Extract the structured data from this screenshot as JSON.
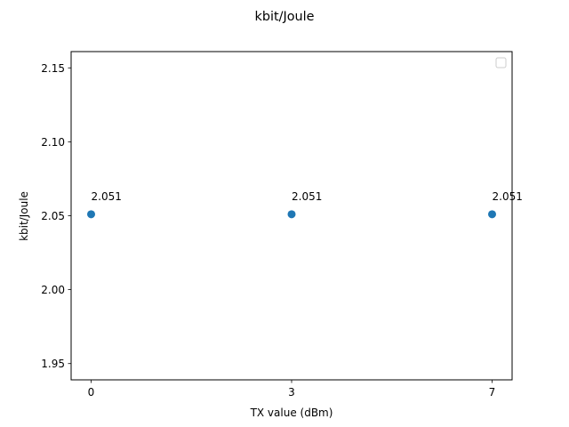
{
  "chart_data": {
    "type": "scatter",
    "title": "kbit/Joule",
    "xlabel": "TX value (dBm)",
    "ylabel": "kbit/Joule",
    "x_tick_labels": [
      "0",
      "3",
      "7"
    ],
    "y_ticks": [
      "1.95",
      "2.00",
      "2.05",
      "2.10",
      "2.15"
    ],
    "ylim": [
      1.939,
      2.161
    ],
    "grid": false,
    "legend": "top-right (empty)",
    "series": [
      {
        "color": "#1f77b4",
        "points": [
          {
            "x": "0",
            "y": 2.051,
            "label": "2.051"
          },
          {
            "x": "3",
            "y": 2.051,
            "label": "2.051"
          },
          {
            "x": "7",
            "y": 2.051,
            "label": "2.051"
          }
        ]
      }
    ]
  }
}
